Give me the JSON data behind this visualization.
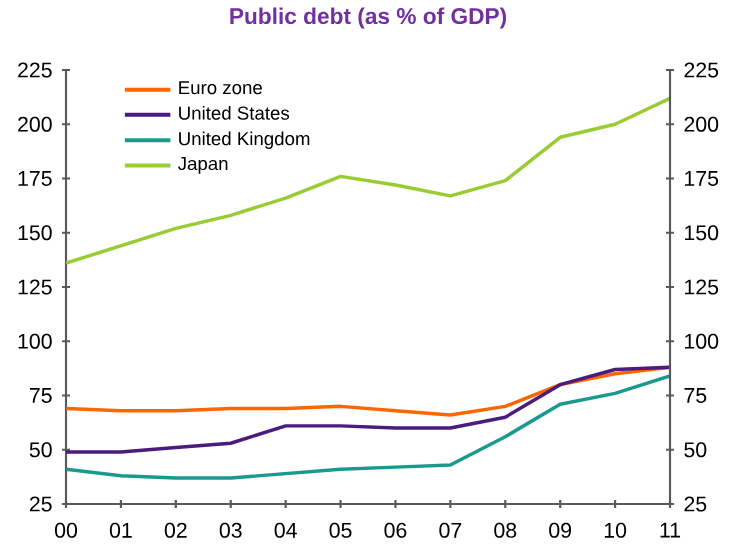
{
  "chart_data": {
    "type": "line",
    "title": "Public debt (as % of GDP)",
    "categories": [
      "00",
      "01",
      "02",
      "03",
      "04",
      "05",
      "06",
      "07",
      "08",
      "09",
      "10",
      "11"
    ],
    "series": [
      {
        "name": "Euro zone",
        "color": "#ff6600",
        "values": [
          69,
          68,
          68,
          69,
          69,
          70,
          68,
          66,
          70,
          80,
          85,
          88
        ]
      },
      {
        "name": "United States",
        "color": "#4b1b7e",
        "values": [
          49,
          49,
          51,
          53,
          61,
          61,
          60,
          60,
          65,
          80,
          87,
          88
        ]
      },
      {
        "name": "United Kingdom",
        "color": "#1a9a8e",
        "values": [
          41,
          38,
          37,
          37,
          39,
          41,
          42,
          43,
          56,
          71,
          76,
          84
        ]
      },
      {
        "name": "Japan",
        "color": "#99cc33",
        "values": [
          136,
          144,
          152,
          158,
          166,
          176,
          172,
          167,
          174,
          194,
          200,
          212
        ]
      }
    ],
    "ylim": [
      25,
      225
    ],
    "yticks": [
      25,
      50,
      75,
      100,
      125,
      150,
      175,
      200,
      225
    ],
    "y2lim": [
      25,
      225
    ],
    "y2ticks": [
      25,
      50,
      75,
      100,
      125,
      150,
      175,
      200,
      225
    ],
    "grid": false,
    "legend": "top left",
    "marker": "none",
    "line_style": "solid"
  }
}
